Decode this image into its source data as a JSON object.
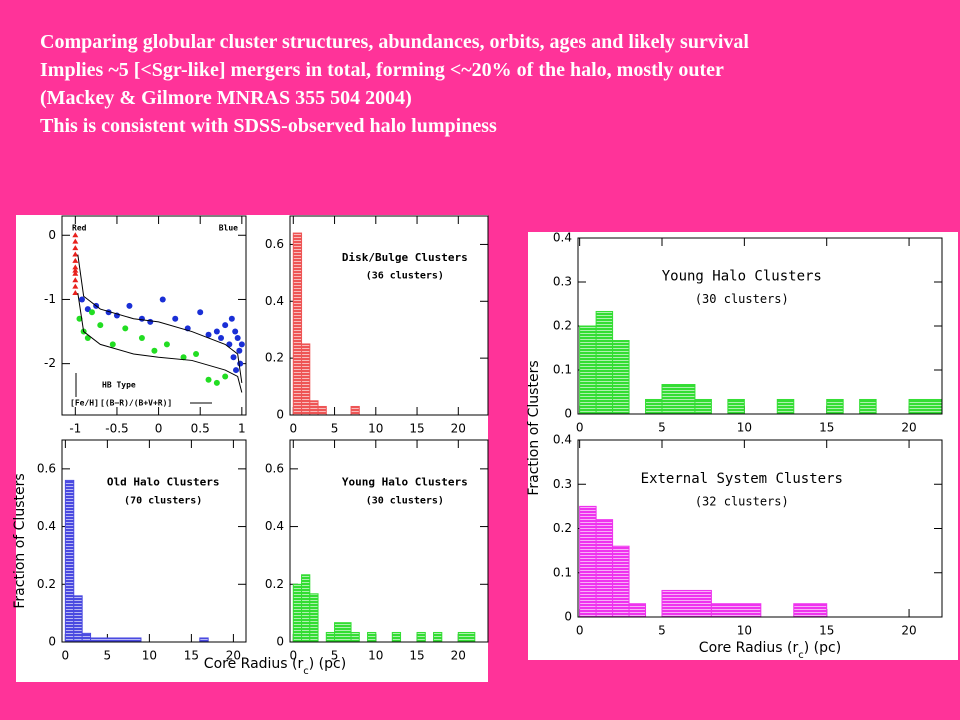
{
  "header": {
    "lines": [
      "Comparing globular cluster structures, abundances, orbits, ages and likely survival",
      "Implies ~5 [<Sgr-like] mergers in total, forming <~20% of the halo, mostly outer",
      "(Mackey & Gilmore MNRAS 355 504 2004)",
      "This is consistent with SDSS-observed halo  lumpiness"
    ]
  },
  "chart_data": [
    {
      "type": "scatter",
      "annotations": [
        "Red",
        "Blue",
        "HB Type",
        "[Fe/H]",
        "[(B−R)/(B+V+R)]"
      ],
      "xlim": [
        -1.16,
        1.05
      ],
      "ylim": [
        -2.8,
        0.3
      ],
      "xticks": [
        -1,
        -0.5,
        0,
        0.5,
        1
      ],
      "yticks": [
        0,
        -1,
        -2
      ],
      "series": [
        {
          "color": "#e8201c",
          "marker": "triangle",
          "x": [
            -1,
            -1,
            -1,
            -1,
            -1,
            -1,
            -1,
            -1,
            -1,
            -1,
            -1
          ],
          "y": [
            0,
            -0.1,
            -0.2,
            -0.3,
            -0.4,
            -0.5,
            -0.55,
            -0.6,
            -0.7,
            -0.8,
            -0.9
          ]
        },
        {
          "color": "#1a2fd6",
          "marker": "circle",
          "x": [
            -0.92,
            -0.85,
            -0.75,
            -0.6,
            -0.5,
            -0.35,
            -0.2,
            -0.1,
            0.05,
            0.2,
            0.35,
            0.5,
            0.6,
            0.7,
            0.75,
            0.8,
            0.85,
            0.9,
            0.92,
            0.95,
            0.97,
            1.0,
            0.98,
            0.93,
            0.88
          ],
          "y": [
            -1.0,
            -1.15,
            -1.1,
            -1.2,
            -1.25,
            -1.1,
            -1.3,
            -1.35,
            -1.0,
            -1.3,
            -1.45,
            -1.2,
            -1.55,
            -1.5,
            -1.6,
            -1.4,
            -1.7,
            -1.9,
            -1.5,
            -1.6,
            -1.8,
            -1.7,
            -2.0,
            -2.1,
            -1.3
          ]
        },
        {
          "color": "#22dd22",
          "marker": "circle",
          "x": [
            -0.95,
            -0.9,
            -0.85,
            -0.7,
            -0.55,
            -0.4,
            -0.2,
            -0.05,
            0.1,
            0.3,
            0.45,
            0.6,
            0.7,
            0.8,
            -0.8
          ],
          "y": [
            -1.3,
            -1.5,
            -1.6,
            -1.4,
            -1.7,
            -1.45,
            -1.6,
            -1.8,
            -1.7,
            -1.9,
            -1.85,
            -2.25,
            -2.3,
            -2.2,
            -1.2
          ]
        },
        {
          "color": "#000000",
          "marker": "line",
          "x": [
            -0.97,
            -0.9,
            -0.7,
            -0.3,
            0,
            0.4,
            0.8,
            0.95,
            1
          ],
          "y": [
            -0.3,
            -0.95,
            -1.15,
            -1.3,
            -1.35,
            -1.5,
            -1.7,
            -1.85,
            -2.3
          ]
        },
        {
          "color": "#000000",
          "marker": "line",
          "x": [
            -0.97,
            -0.9,
            -0.7,
            -0.3,
            0,
            0.4,
            0.8,
            0.95,
            1
          ],
          "y": [
            -0.9,
            -1.5,
            -1.7,
            -1.85,
            -1.9,
            -1.95,
            -2.1,
            -2.2,
            -2.45
          ]
        }
      ]
    },
    {
      "type": "histogram",
      "title": "Disk/Bulge Clusters",
      "subtitle": "(36 clusters)",
      "color": "#ee5555",
      "bins": [
        0,
        1,
        2,
        3,
        4,
        7,
        8
      ],
      "counts": [
        0.64,
        0.25,
        0.05,
        0.03,
        0,
        0.03
      ],
      "xlim": [
        -0.4,
        23.6
      ],
      "ylim": [
        0,
        0.7
      ],
      "xticks": [
        0,
        5,
        10,
        15,
        20
      ],
      "yticks": [
        0,
        0.2,
        0.4,
        0.6
      ]
    },
    {
      "type": "histogram",
      "title": "Old Halo Clusters",
      "subtitle": "(70 clusters)",
      "color": "#4a4ae0",
      "ylabel": "Fraction of Clusters",
      "bins": [
        0,
        1,
        2,
        3,
        9,
        16,
        17
      ],
      "counts": [
        0.56,
        0.16,
        0.03,
        0.014,
        0,
        0.014
      ],
      "xlim": [
        -0.4,
        21.5
      ],
      "ylim": [
        0,
        0.7
      ],
      "xticks": [
        0,
        5,
        10,
        15,
        20
      ],
      "yticks": [
        0,
        0.2,
        0.4,
        0.6
      ]
    },
    {
      "type": "histogram",
      "title": "Young Halo Clusters",
      "subtitle": "(30 clusters)",
      "color": "#33dd33",
      "xlabel": [
        "Core Radius (r",
        "c",
        ") (pc)"
      ],
      "bins": [
        0,
        1,
        2,
        3,
        4,
        5,
        7,
        8,
        9,
        10,
        12,
        13,
        15,
        16,
        17,
        18,
        20,
        22
      ],
      "counts": [
        0.2,
        0.233,
        0.167,
        0,
        0.033,
        0.067,
        0.033,
        0,
        0.033,
        0,
        0.033,
        0,
        0.033,
        0,
        0.033,
        0,
        0.033
      ],
      "xlim": [
        -0.4,
        23.6
      ],
      "ylim": [
        0,
        0.7
      ],
      "xticks": [
        0,
        5,
        10,
        15,
        20
      ],
      "yticks": [
        0,
        0.2,
        0.4,
        0.6
      ]
    },
    {
      "type": "histogram",
      "title": "Young Halo Clusters",
      "subtitle": "(30 clusters)",
      "color": "#33dd33",
      "bins": [
        0,
        1,
        2,
        3,
        4,
        5,
        7,
        8,
        9,
        10,
        12,
        13,
        15,
        16,
        17,
        18,
        20,
        22
      ],
      "counts": [
        0.2,
        0.233,
        0.167,
        0,
        0.033,
        0.067,
        0.033,
        0,
        0.033,
        0,
        0.033,
        0,
        0.033,
        0,
        0.033,
        0,
        0.033
      ],
      "xlim": [
        -0.1,
        22
      ],
      "ylim": [
        0,
        0.4
      ],
      "xticks": [
        0,
        5,
        10,
        15,
        20
      ],
      "yticks": [
        0,
        0.1,
        0.2,
        0.3,
        0.4
      ]
    },
    {
      "type": "histogram",
      "title": "External System Clusters",
      "subtitle": "(32 clusters)",
      "color": "#ee33ee",
      "ylabel": "Fraction of Clusters",
      "xlabel": [
        "Core Radius (r",
        "c",
        ") (pc)"
      ],
      "bins": [
        0,
        1,
        2,
        3,
        4,
        5,
        8,
        11,
        13,
        15
      ],
      "counts": [
        0.25,
        0.22,
        0.16,
        0.03,
        0,
        0.06,
        0.03,
        0,
        0.03
      ],
      "xlim": [
        -0.1,
        22
      ],
      "ylim": [
        0,
        0.4
      ],
      "xticks": [
        0,
        5,
        10,
        15,
        20
      ],
      "yticks": [
        0,
        0.1,
        0.2,
        0.3,
        0.4
      ]
    }
  ]
}
